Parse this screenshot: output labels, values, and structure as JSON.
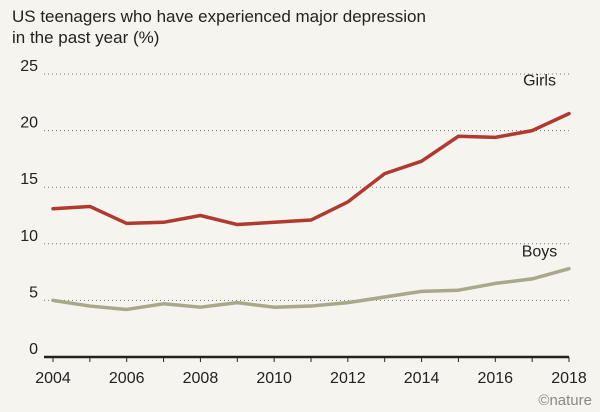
{
  "chart_data": {
    "type": "line",
    "title": "US teenagers who have experienced major depression in the past year (%)",
    "x": [
      2004,
      2005,
      2006,
      2007,
      2008,
      2009,
      2010,
      2011,
      2012,
      2013,
      2014,
      2015,
      2016,
      2017,
      2018
    ],
    "xticks": [
      2004,
      2006,
      2008,
      2010,
      2012,
      2014,
      2016,
      2018
    ],
    "yticks": [
      0,
      5,
      10,
      15,
      20,
      25
    ],
    "xlim": [
      2004,
      2018
    ],
    "ylim": [
      0,
      25
    ],
    "grid": "horizontal dotted",
    "series": [
      {
        "name": "Girls",
        "color": "#b03a2e",
        "values": [
          13.1,
          13.3,
          11.8,
          11.9,
          12.5,
          11.7,
          11.9,
          12.1,
          13.7,
          16.2,
          17.3,
          19.5,
          19.4,
          20.0,
          21.5
        ]
      },
      {
        "name": "Boys",
        "color": "#a9a78c",
        "values": [
          5.0,
          4.5,
          4.2,
          4.7,
          4.4,
          4.8,
          4.4,
          4.5,
          4.8,
          5.3,
          5.8,
          5.9,
          6.5,
          6.9,
          7.8
        ]
      }
    ]
  },
  "logo": "©nature"
}
